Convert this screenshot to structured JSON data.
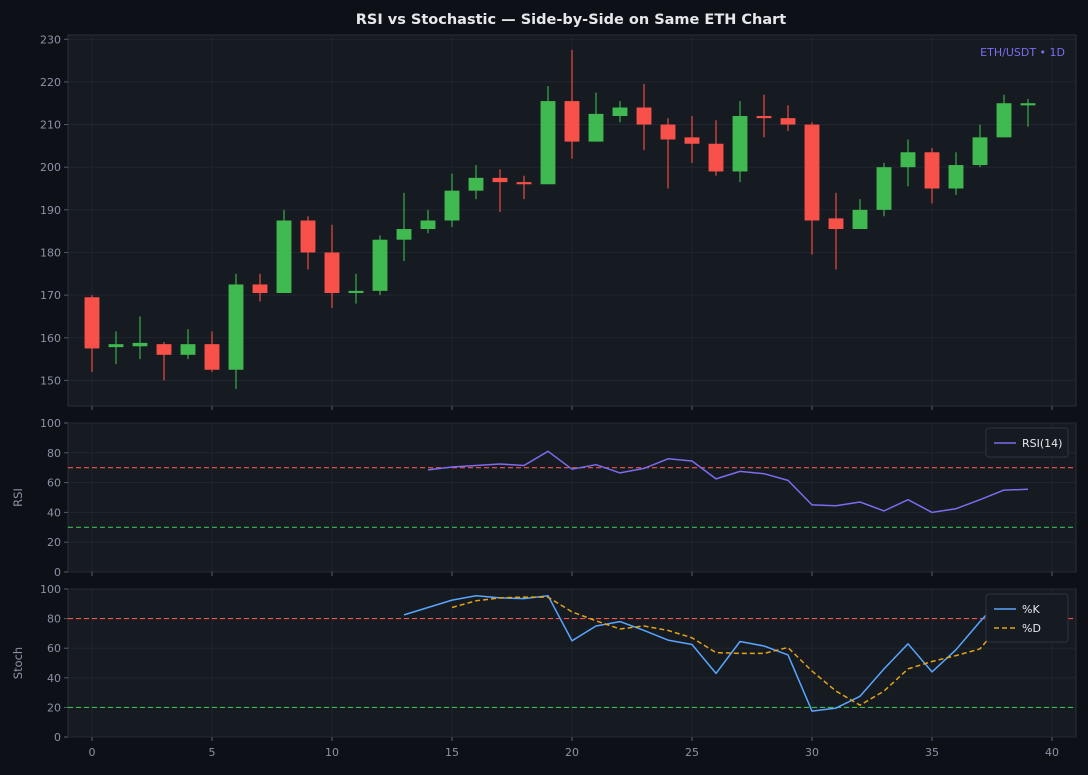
{
  "title": "RSI vs Stochastic — Side-by-Side on Same ETH Chart",
  "colors": {
    "background": "#0d1017",
    "panel": "#161a21",
    "grid": "#232832",
    "up": "#3fb950",
    "down": "#f85149",
    "rsi": "#7b6cf0",
    "k": "#58a6ff",
    "d": "#e3a21a",
    "overbought": "#f85149",
    "oversold": "#3fb950",
    "text": "#8b93a4"
  },
  "chart_data": [
    {
      "type": "candlestick",
      "annotation": "ETH/USDT • 1D",
      "x_ticks": [
        0,
        5,
        10,
        15,
        20,
        25,
        30,
        35,
        40
      ],
      "y_ticks": [
        150,
        160,
        170,
        180,
        190,
        200,
        210,
        220,
        230
      ],
      "xlim": [
        -1,
        41
      ],
      "ylim": [
        144,
        231
      ],
      "candles": [
        {
          "x": 0,
          "o": 169.5,
          "h": 170,
          "l": 152,
          "c": 157.5
        },
        {
          "x": 1,
          "o": 157.8,
          "h": 161.5,
          "l": 153.8,
          "c": 158.5
        },
        {
          "x": 2,
          "o": 158,
          "h": 165,
          "l": 155,
          "c": 158.8
        },
        {
          "x": 3,
          "o": 158.5,
          "h": 159,
          "l": 150,
          "c": 156
        },
        {
          "x": 4,
          "o": 156,
          "h": 162,
          "l": 155,
          "c": 158.5
        },
        {
          "x": 5,
          "o": 158.5,
          "h": 161.5,
          "l": 152,
          "c": 152.5
        },
        {
          "x": 6,
          "o": 152.5,
          "h": 175,
          "l": 148,
          "c": 172.5
        },
        {
          "x": 7,
          "o": 172.5,
          "h": 175,
          "l": 168.5,
          "c": 170.5
        },
        {
          "x": 8,
          "o": 170.5,
          "h": 190,
          "l": 170.5,
          "c": 187.5
        },
        {
          "x": 9,
          "o": 187.5,
          "h": 188.5,
          "l": 176,
          "c": 180
        },
        {
          "x": 10,
          "o": 180,
          "h": 186.5,
          "l": 167,
          "c": 170.5
        },
        {
          "x": 11,
          "o": 170.5,
          "h": 175,
          "l": 168,
          "c": 171
        },
        {
          "x": 12,
          "o": 171,
          "h": 184,
          "l": 170,
          "c": 183
        },
        {
          "x": 13,
          "o": 183,
          "h": 194,
          "l": 178,
          "c": 185.5
        },
        {
          "x": 14,
          "o": 185.5,
          "h": 190,
          "l": 184.5,
          "c": 187.5
        },
        {
          "x": 15,
          "o": 187.5,
          "h": 198.5,
          "l": 186,
          "c": 194.5
        },
        {
          "x": 16,
          "o": 194.5,
          "h": 200.5,
          "l": 192.5,
          "c": 197.5
        },
        {
          "x": 17,
          "o": 197.5,
          "h": 199.5,
          "l": 189.5,
          "c": 196.5
        },
        {
          "x": 18,
          "o": 196.5,
          "h": 198,
          "l": 192.5,
          "c": 196
        },
        {
          "x": 19,
          "o": 196,
          "h": 219,
          "l": 196,
          "c": 215.5
        },
        {
          "x": 20,
          "o": 215.5,
          "h": 227.5,
          "l": 202,
          "c": 206
        },
        {
          "x": 21,
          "o": 206,
          "h": 217.5,
          "l": 206,
          "c": 212.5
        },
        {
          "x": 22,
          "o": 212,
          "h": 215.5,
          "l": 210.5,
          "c": 214
        },
        {
          "x": 23,
          "o": 214,
          "h": 219.5,
          "l": 204,
          "c": 210
        },
        {
          "x": 24,
          "o": 210,
          "h": 211.5,
          "l": 195,
          "c": 206.5
        },
        {
          "x": 25,
          "o": 207,
          "h": 212,
          "l": 201,
          "c": 205.5
        },
        {
          "x": 26,
          "o": 205.5,
          "h": 211,
          "l": 198,
          "c": 199
        },
        {
          "x": 27,
          "o": 199,
          "h": 215.5,
          "l": 196.5,
          "c": 212
        },
        {
          "x": 28,
          "o": 212,
          "h": 217,
          "l": 207,
          "c": 211.5
        },
        {
          "x": 29,
          "o": 211.5,
          "h": 214.5,
          "l": 208.5,
          "c": 210
        },
        {
          "x": 30,
          "o": 210,
          "h": 210.5,
          "l": 179.5,
          "c": 187.5
        },
        {
          "x": 31,
          "o": 188,
          "h": 194,
          "l": 176,
          "c": 185.5
        },
        {
          "x": 32,
          "o": 185.5,
          "h": 192.5,
          "l": 185.5,
          "c": 190
        },
        {
          "x": 33,
          "o": 190,
          "h": 201,
          "l": 188.5,
          "c": 200
        },
        {
          "x": 34,
          "o": 200,
          "h": 206.5,
          "l": 195.5,
          "c": 203.5
        },
        {
          "x": 35,
          "o": 203.5,
          "h": 204.5,
          "l": 191.5,
          "c": 195
        },
        {
          "x": 36,
          "o": 195,
          "h": 203.5,
          "l": 193.5,
          "c": 200.5
        },
        {
          "x": 37,
          "o": 200.5,
          "h": 210,
          "l": 200,
          "c": 207
        },
        {
          "x": 38,
          "o": 207,
          "h": 217,
          "l": 207,
          "c": 215
        },
        {
          "x": 39,
          "o": 214.5,
          "h": 216,
          "l": 209.5,
          "c": 215
        }
      ]
    },
    {
      "type": "line",
      "ylabel": "RSI",
      "ylim": [
        0,
        100
      ],
      "y_ticks": [
        0,
        20,
        40,
        60,
        80,
        100
      ],
      "x_ticks": [
        0,
        5,
        10,
        15,
        20,
        25,
        30,
        35,
        40
      ],
      "xlim": [
        -1,
        41
      ],
      "hlines": [
        {
          "y": 70,
          "role": "overbought"
        },
        {
          "y": 30,
          "role": "oversold"
        }
      ],
      "legend_position": "top-right",
      "series": [
        {
          "name": "RSI(14)",
          "x": [
            14,
            15,
            16,
            17,
            18,
            19,
            20,
            21,
            22,
            23,
            24,
            25,
            26,
            27,
            28,
            29,
            30,
            31,
            32,
            33,
            34,
            35,
            36,
            37,
            38,
            39
          ],
          "values": [
            68.5,
            70.5,
            71.5,
            72.5,
            71.5,
            81,
            69,
            72,
            66.5,
            69.5,
            76,
            74.5,
            62.5,
            67.5,
            66,
            61.5,
            45,
            44.5,
            47,
            41,
            48.5,
            40,
            42.5,
            48.5,
            55,
            55.5
          ]
        }
      ]
    },
    {
      "type": "line",
      "ylabel": "Stoch",
      "ylim": [
        0,
        100
      ],
      "y_ticks": [
        0,
        20,
        40,
        60,
        80,
        100
      ],
      "x_ticks": [
        0,
        5,
        10,
        15,
        20,
        25,
        30,
        35,
        40
      ],
      "xlim": [
        -1,
        41
      ],
      "hlines": [
        {
          "y": 80,
          "role": "overbought"
        },
        {
          "y": 20,
          "role": "oversold"
        }
      ],
      "legend_position": "top-right",
      "series": [
        {
          "name": "%K",
          "style": "solid",
          "x": [
            13,
            14,
            15,
            16,
            17,
            18,
            19,
            20,
            21,
            22,
            23,
            24,
            25,
            26,
            27,
            28,
            29,
            30,
            31,
            32,
            33,
            34,
            35,
            36,
            37,
            38,
            39
          ],
          "values": [
            82.5,
            87.5,
            92.5,
            95.5,
            94,
            93.5,
            95.5,
            65,
            75,
            78,
            72,
            65.5,
            62.5,
            43,
            64.5,
            61.5,
            55.5,
            17.5,
            19.5,
            27.5,
            46,
            63,
            44,
            59,
            78,
            95.5,
            94.5
          ]
        },
        {
          "name": "%D",
          "style": "dashed",
          "x": [
            15,
            16,
            17,
            18,
            19,
            20,
            21,
            22,
            23,
            24,
            25,
            26,
            27,
            28,
            29,
            30,
            31,
            32,
            33,
            34,
            35,
            36,
            37,
            38,
            39
          ],
          "values": [
            87.5,
            92,
            94,
            94.5,
            94.5,
            84.5,
            78.5,
            73,
            75,
            72,
            67,
            57,
            56.5,
            56.5,
            60.5,
            44.5,
            31,
            21.5,
            31,
            46,
            51,
            55,
            59.5,
            79,
            87
          ]
        }
      ]
    }
  ]
}
